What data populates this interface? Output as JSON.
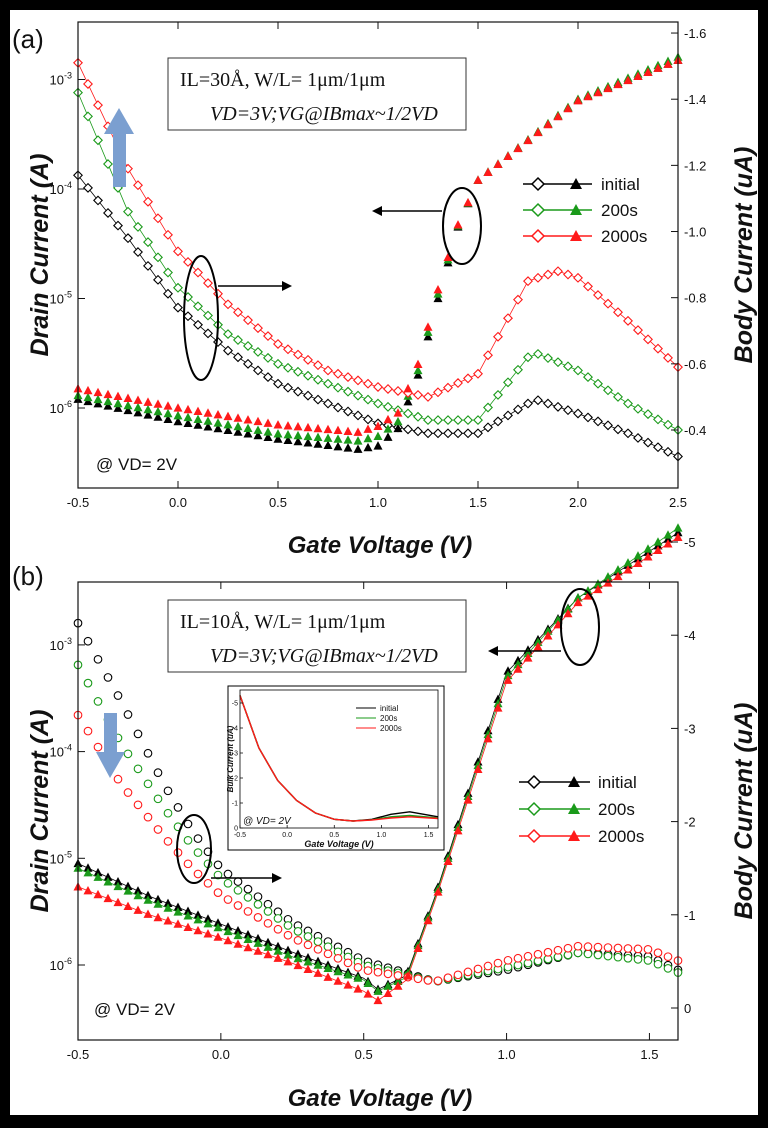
{
  "panels": [
    {
      "panel_label": "(a)",
      "info_line1": "IL=30Å, W/L= 1μm/1μm",
      "info_line2": "VD=3V;VG@IBmax~1/2VD",
      "condition": "@ VD= 2V",
      "xlabel": "Gate Voltage (V)",
      "ylabel_left": "Drain Current (A)",
      "ylabel_right": "Body Current (uA)"
    },
    {
      "panel_label": "(b)",
      "info_line1": "IL=10Å, W/L= 1μm/1μm",
      "info_line2": "VD=3V;VG@IBmax~1/2VD",
      "condition": "@ VD= 2V",
      "xlabel": "Gate Voltage (V)",
      "ylabel_left": "Drain Current (A)",
      "ylabel_right": "Body Current (uA)",
      "inset": {
        "xlabel": "Gate Voltage (V)",
        "ylabel": "Bulk Current (uA)",
        "condition": "@ VD= 2V"
      }
    }
  ],
  "colors": {
    "initial": "#000000",
    "200s": "#1a9a1a",
    "2000s": "#ff1a1a",
    "stress_arrow": "#7b9fd0"
  },
  "chart_data": [
    {
      "type": "scatter",
      "xlim": [
        -0.5,
        2.5
      ],
      "x_ticks": [
        "-0.5",
        "0.0",
        "0.5",
        "1.0",
        "1.5",
        "2.0",
        "2.5"
      ],
      "y_left_scale": "log",
      "y_left_ticks": [
        "10-6",
        "10-5",
        "10-4",
        "10-3"
      ],
      "y_right_ticks": [
        "-0.4",
        "-0.6",
        "-0.8",
        "-1.0",
        "-1.2",
        "-1.4",
        "-1.6"
      ],
      "legend_placement": "right",
      "series": [
        {
          "name": "initial",
          "marker": "open-diamond",
          "axis": "right",
          "body": [
            [
              -0.5,
              -1.17
            ],
            [
              -0.25,
              -0.98
            ],
            [
              0.0,
              -0.77
            ],
            [
              0.25,
              -0.64
            ],
            [
              0.5,
              -0.54
            ],
            [
              0.75,
              -0.48
            ],
            [
              1.0,
              -0.42
            ],
            [
              1.25,
              -0.39
            ],
            [
              1.5,
              -0.39
            ],
            [
              1.75,
              -0.48
            ],
            [
              1.8,
              -0.49
            ],
            [
              2.0,
              -0.45
            ],
            [
              2.25,
              -0.39
            ],
            [
              2.5,
              -0.32
            ]
          ]
        },
        {
          "name": "initial",
          "marker": "filled-triangle",
          "axis": "left",
          "drain": [
            [
              -0.5,
              1.2e-06
            ],
            [
              0.0,
              7.5e-07
            ],
            [
              0.5,
              5.2e-07
            ],
            [
              0.9,
              4.2e-07
            ],
            [
              1.0,
              4.5e-07
            ],
            [
              1.1,
              6.5e-07
            ],
            [
              1.2,
              2e-06
            ],
            [
              1.3,
              1e-05
            ],
            [
              1.4,
              4.5e-05
            ],
            [
              1.5,
              0.00012
            ],
            [
              2.0,
              0.00065
            ],
            [
              2.5,
              0.0015
            ]
          ]
        },
        {
          "name": "200s",
          "marker": "open-diamond",
          "axis": "right",
          "body": [
            [
              -0.5,
              -1.42
            ],
            [
              -0.25,
              -1.06
            ],
            [
              0.0,
              -0.83
            ],
            [
              0.25,
              -0.69
            ],
            [
              0.5,
              -0.6
            ],
            [
              0.75,
              -0.54
            ],
            [
              1.0,
              -0.48
            ],
            [
              1.25,
              -0.43
            ],
            [
              1.5,
              -0.43
            ],
            [
              1.75,
              -0.62
            ],
            [
              1.8,
              -0.63
            ],
            [
              2.0,
              -0.58
            ],
            [
              2.25,
              -0.48
            ],
            [
              2.5,
              -0.4
            ]
          ]
        },
        {
          "name": "200s",
          "marker": "filled-triangle",
          "axis": "left",
          "drain": [
            [
              -0.5,
              1.3e-06
            ],
            [
              0.0,
              8.5e-07
            ],
            [
              0.5,
              5.8e-07
            ],
            [
              0.9,
              5e-07
            ],
            [
              1.0,
              5.5e-07
            ],
            [
              1.1,
              7.5e-07
            ],
            [
              1.2,
              2.2e-06
            ],
            [
              1.3,
              1.1e-05
            ],
            [
              1.4,
              4.6e-05
            ],
            [
              1.5,
              0.00012
            ],
            [
              2.0,
              0.00066
            ],
            [
              2.5,
              0.0016
            ]
          ]
        },
        {
          "name": "2000s",
          "marker": "open-diamond",
          "axis": "right",
          "body": [
            [
              -0.5,
              -1.51
            ],
            [
              -0.25,
              -1.19
            ],
            [
              0.0,
              -0.94
            ],
            [
              0.25,
              -0.78
            ],
            [
              0.5,
              -0.66
            ],
            [
              0.75,
              -0.58
            ],
            [
              1.0,
              -0.53
            ],
            [
              1.25,
              -0.5
            ],
            [
              1.5,
              -0.57
            ],
            [
              1.75,
              -0.85
            ],
            [
              1.9,
              -0.88
            ],
            [
              2.0,
              -0.86
            ],
            [
              2.25,
              -0.73
            ],
            [
              2.5,
              -0.59
            ]
          ]
        },
        {
          "name": "2000s",
          "marker": "filled-triangle",
          "axis": "left",
          "drain": [
            [
              -0.5,
              1.5e-06
            ],
            [
              0.0,
              1e-06
            ],
            [
              0.5,
              7e-07
            ],
            [
              0.9,
              6e-07
            ],
            [
              1.0,
              6.8e-07
            ],
            [
              1.1,
              9e-07
            ],
            [
              1.2,
              2.5e-06
            ],
            [
              1.3,
              1.2e-05
            ],
            [
              1.4,
              4.7e-05
            ],
            [
              1.5,
              0.00012
            ],
            [
              2.0,
              0.00064
            ],
            [
              2.5,
              0.0015
            ]
          ]
        }
      ]
    },
    {
      "type": "scatter",
      "xlim": [
        -0.5,
        1.6
      ],
      "x_ticks": [
        "-0.5",
        "0.0",
        "0.5",
        "1.0",
        "1.5"
      ],
      "y_left_scale": "log",
      "y_left_ticks": [
        "10-6",
        "10-5",
        "10-4",
        "10-3"
      ],
      "y_right_ticks": [
        "0",
        "-1",
        "-2",
        "-3",
        "-4",
        "-5"
      ],
      "legend_placement": "right",
      "series": [
        {
          "name": "initial",
          "marker": "open-diamond",
          "axis": "left",
          "drain": [
            [
              -0.5,
              0.0016
            ],
            [
              -0.35,
              0.0003
            ],
            [
              -0.2,
              5e-05
            ],
            [
              -0.1,
              1.8e-05
            ],
            [
              0.0,
              8e-06
            ],
            [
              0.25,
              2.5e-06
            ],
            [
              0.5,
              1.1e-06
            ],
            [
              0.75,
              7e-07
            ],
            [
              1.0,
              9e-07
            ],
            [
              1.25,
              1.3e-06
            ],
            [
              1.5,
              1.2e-06
            ],
            [
              1.6,
              9e-07
            ]
          ]
        },
        {
          "name": "initial",
          "marker": "filled-triangle",
          "axis": "right",
          "body": [
            [
              -0.5,
              -1.55
            ],
            [
              -0.25,
              -1.2
            ],
            [
              0.0,
              -0.9
            ],
            [
              0.25,
              -0.6
            ],
            [
              0.5,
              -0.32
            ],
            [
              0.55,
              -0.2
            ],
            [
              0.65,
              -0.35
            ],
            [
              0.75,
              -1.2
            ],
            [
              1.0,
              -3.6
            ],
            [
              1.25,
              -4.4
            ],
            [
              1.6,
              -5.1
            ]
          ]
        },
        {
          "name": "200s",
          "marker": "open-diamond",
          "axis": "left",
          "drain": [
            [
              -0.5,
              0.00065
            ],
            [
              -0.35,
              0.00012
            ],
            [
              -0.2,
              3e-05
            ],
            [
              -0.1,
              1.3e-05
            ],
            [
              0.0,
              6.5e-06
            ],
            [
              0.25,
              2.2e-06
            ],
            [
              0.5,
              1e-06
            ],
            [
              0.75,
              7e-07
            ],
            [
              1.0,
              9.5e-07
            ],
            [
              1.25,
              1.3e-06
            ],
            [
              1.5,
              1.1e-06
            ],
            [
              1.6,
              8.5e-07
            ]
          ]
        },
        {
          "name": "200s",
          "marker": "filled-triangle",
          "axis": "right",
          "body": [
            [
              -0.5,
              -1.5
            ],
            [
              -0.25,
              -1.15
            ],
            [
              0.0,
              -0.85
            ],
            [
              0.25,
              -0.55
            ],
            [
              0.5,
              -0.3
            ],
            [
              0.55,
              -0.18
            ],
            [
              0.65,
              -0.33
            ],
            [
              0.75,
              -1.18
            ],
            [
              1.0,
              -3.55
            ],
            [
              1.25,
              -4.4
            ],
            [
              1.6,
              -5.15
            ]
          ]
        },
        {
          "name": "2000s",
          "marker": "open-diamond",
          "axis": "left",
          "drain": [
            [
              -0.5,
              0.00022
            ],
            [
              -0.35,
              5e-05
            ],
            [
              -0.2,
              1.6e-05
            ],
            [
              -0.1,
              8e-06
            ],
            [
              0.0,
              4.5e-06
            ],
            [
              0.25,
              1.8e-06
            ],
            [
              0.5,
              9e-07
            ],
            [
              0.75,
              7e-07
            ],
            [
              1.0,
              1.1e-06
            ],
            [
              1.25,
              1.5e-06
            ],
            [
              1.5,
              1.4e-06
            ],
            [
              1.6,
              1.1e-06
            ]
          ]
        },
        {
          "name": "2000s",
          "marker": "filled-triangle",
          "axis": "right",
          "body": [
            [
              -0.5,
              -1.3
            ],
            [
              -0.25,
              -1.0
            ],
            [
              0.0,
              -0.75
            ],
            [
              0.25,
              -0.48
            ],
            [
              0.5,
              -0.18
            ],
            [
              0.55,
              -0.08
            ],
            [
              0.65,
              -0.3
            ],
            [
              0.75,
              -1.15
            ],
            [
              1.0,
              -3.5
            ],
            [
              1.25,
              -4.35
            ],
            [
              1.6,
              -5.05
            ]
          ]
        }
      ]
    },
    {
      "type": "line",
      "xlim": [
        -0.5,
        1.6
      ],
      "x_ticks": [
        "-0.5",
        "0.0",
        "0.5",
        "1.0",
        "1.5"
      ],
      "y_ticks": [
        "0",
        "-1",
        "-2",
        "-3",
        "-4",
        "-5"
      ],
      "legend_placement": "top-right",
      "series": [
        {
          "name": "initial",
          "points": [
            [
              -0.5,
              -5.3
            ],
            [
              -0.3,
              -3.2
            ],
            [
              -0.1,
              -1.9
            ],
            [
              0.1,
              -1.1
            ],
            [
              0.3,
              -0.6
            ],
            [
              0.5,
              -0.35
            ],
            [
              0.7,
              -0.28
            ],
            [
              0.9,
              -0.35
            ],
            [
              1.1,
              -0.55
            ],
            [
              1.3,
              -0.65
            ],
            [
              1.6,
              -0.45
            ]
          ]
        },
        {
          "name": "200s",
          "points": [
            [
              -0.5,
              -5.3
            ],
            [
              -0.3,
              -3.2
            ],
            [
              -0.1,
              -1.9
            ],
            [
              0.1,
              -1.1
            ],
            [
              0.3,
              -0.6
            ],
            [
              0.5,
              -0.35
            ],
            [
              0.7,
              -0.28
            ],
            [
              0.9,
              -0.33
            ],
            [
              1.1,
              -0.45
            ],
            [
              1.3,
              -0.5
            ],
            [
              1.6,
              -0.4
            ]
          ]
        },
        {
          "name": "2000s",
          "points": [
            [
              -0.5,
              -5.3
            ],
            [
              -0.3,
              -3.2
            ],
            [
              -0.1,
              -1.9
            ],
            [
              0.1,
              -1.1
            ],
            [
              0.3,
              -0.6
            ],
            [
              0.5,
              -0.35
            ],
            [
              0.7,
              -0.28
            ],
            [
              0.9,
              -0.32
            ],
            [
              1.1,
              -0.4
            ],
            [
              1.3,
              -0.45
            ],
            [
              1.6,
              -0.38
            ]
          ]
        }
      ]
    }
  ]
}
